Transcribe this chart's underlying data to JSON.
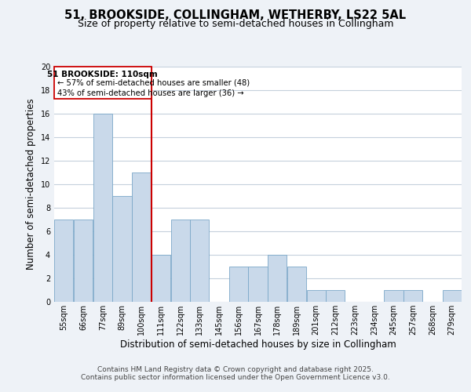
{
  "title": "51, BROOKSIDE, COLLINGHAM, WETHERBY, LS22 5AL",
  "subtitle": "Size of property relative to semi-detached houses in Collingham",
  "xlabel": "Distribution of semi-detached houses by size in Collingham",
  "ylabel": "Number of semi-detached properties",
  "bin_labels": [
    "55sqm",
    "66sqm",
    "77sqm",
    "89sqm",
    "100sqm",
    "111sqm",
    "122sqm",
    "133sqm",
    "145sqm",
    "156sqm",
    "167sqm",
    "178sqm",
    "189sqm",
    "201sqm",
    "212sqm",
    "223sqm",
    "234sqm",
    "245sqm",
    "257sqm",
    "268sqm",
    "279sqm"
  ],
  "n_bins": 21,
  "counts": [
    7,
    7,
    16,
    9,
    11,
    4,
    7,
    7,
    0,
    3,
    3,
    4,
    3,
    1,
    1,
    0,
    0,
    1,
    1,
    0,
    1
  ],
  "bar_color": "#c9d9ea",
  "bar_edge_color": "#7ba8c8",
  "marker_bin": 5,
  "marker_color": "#cc0000",
  "annotation_title": "51 BROOKSIDE: 110sqm",
  "annotation_line1": "← 57% of semi-detached houses are smaller (48)",
  "annotation_line2": "43% of semi-detached houses are larger (36) →",
  "ylim": [
    0,
    20
  ],
  "yticks": [
    0,
    2,
    4,
    6,
    8,
    10,
    12,
    14,
    16,
    18,
    20
  ],
  "background_color": "#eef2f7",
  "plot_background": "#ffffff",
  "grid_color": "#c5d0dc",
  "footer1": "Contains HM Land Registry data © Crown copyright and database right 2025.",
  "footer2": "Contains public sector information licensed under the Open Government Licence v3.0.",
  "title_fontsize": 10.5,
  "subtitle_fontsize": 9,
  "axis_label_fontsize": 8.5,
  "tick_fontsize": 7,
  "annotation_fontsize": 7.5,
  "footer_fontsize": 6.5
}
